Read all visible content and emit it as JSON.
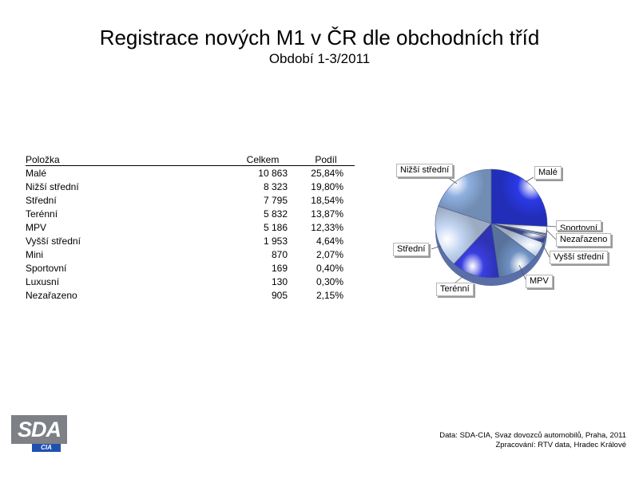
{
  "title": "Registrace nových M1 v ČR dle obchodních tříd",
  "subtitle": "Období 1-3/2011",
  "table": {
    "headers": [
      "Položka",
      "Celkem",
      "Podíl"
    ],
    "rows": [
      {
        "name": "Malé",
        "total": "10 863",
        "share": "25,84%"
      },
      {
        "name": "Nižší střední",
        "total": "8 323",
        "share": "19,80%"
      },
      {
        "name": "Střední",
        "total": "7 795",
        "share": "18,54%"
      },
      {
        "name": "Terénní",
        "total": "5 832",
        "share": "13,87%"
      },
      {
        "name": "MPV",
        "total": "5 186",
        "share": "12,33%"
      },
      {
        "name": "Vyšší střední",
        "total": "1 953",
        "share": "4,64%"
      },
      {
        "name": "Mini",
        "total": "870",
        "share": "2,07%"
      },
      {
        "name": "Sportovní",
        "total": "169",
        "share": "0,40%"
      },
      {
        "name": "Luxusní",
        "total": "130",
        "share": "0,30%"
      },
      {
        "name": "Nezařazeno",
        "total": "905",
        "share": "2,15%"
      }
    ]
  },
  "chart_data": {
    "type": "pie",
    "title": "Registrace nových M1 v ČR dle obchodních tříd",
    "subtitle": "Období 1-3/2011",
    "categories": [
      "Malé",
      "Nižší střední",
      "Střední",
      "Terénní",
      "MPV",
      "Vyšší střední",
      "Mini",
      "Sportovní",
      "Luxusní",
      "Nezařazeno"
    ],
    "values": [
      10863,
      8323,
      7795,
      5832,
      5186,
      1953,
      870,
      169,
      130,
      905
    ],
    "shares_percent": [
      25.84,
      19.8,
      18.54,
      13.87,
      12.33,
      4.64,
      2.07,
      0.4,
      0.3,
      2.15
    ],
    "visible_labels": [
      "Nižší střední",
      "Malé",
      "Sportovní",
      "Nezařazeno",
      "Střední",
      "Vyšší střední",
      "MPV",
      "Terénní"
    ],
    "colors": {
      "Malé": "#2b39e6",
      "MPV": "#6e90c2",
      "Vyšší střední": "#c9d7ea",
      "Mini": "#3c4a8f",
      "Sportovní": "#d9d9d9",
      "Luxusní": "#8a8a8a",
      "Nezařazeno": "#f2f2f2",
      "Terénní": "#3a3ee0",
      "Střední": "#c3d6f3",
      "Nižší střední": "#8fb0e0"
    }
  },
  "logo": {
    "top": "SDA",
    "bottom": "CIA"
  },
  "source": {
    "line1": "Data: SDA-CIA, Svaz dovozců automobilů, Praha, 2011",
    "line2": "Zpracování: RTV data, Hradec Králové"
  }
}
